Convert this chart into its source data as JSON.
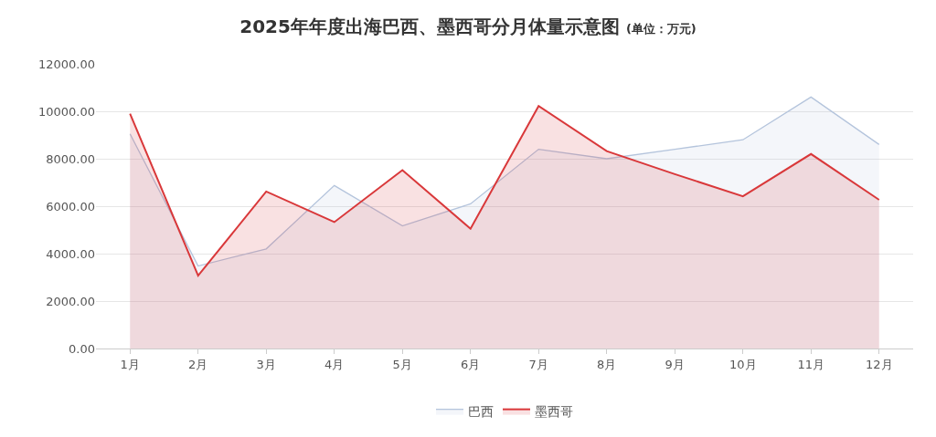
{
  "chart_data": {
    "type": "area",
    "title": "2025年年度出海巴西、墨西哥分月体量示意图",
    "subtitle": "(单位：万元)",
    "categories": [
      "1月",
      "2月",
      "3月",
      "4月",
      "5月",
      "6月",
      "7月",
      "8月",
      "9月",
      "10月",
      "11月",
      "12月"
    ],
    "series": [
      {
        "name": "巴西",
        "color": "#b4c4dc",
        "values": [
          9050,
          3480,
          4200,
          6870,
          5170,
          6100,
          8400,
          8000,
          8400,
          8800,
          10600,
          8600
        ]
      },
      {
        "name": "墨西哥",
        "color": "#d9383a",
        "values": [
          9900,
          3070,
          6620,
          5330,
          7520,
          5050,
          10220,
          8320,
          7350,
          6420,
          8200,
          6270
        ]
      }
    ],
    "ylim": [
      0,
      12000
    ],
    "yticks": [
      {
        "value": 0,
        "label": "0.00"
      },
      {
        "value": 2000,
        "label": "2000.00"
      },
      {
        "value": 4000,
        "label": "4000.00"
      },
      {
        "value": 6000,
        "label": "6000.00"
      },
      {
        "value": 8000,
        "label": "8000.00"
      },
      {
        "value": 10000,
        "label": "10000.00"
      },
      {
        "value": 12000,
        "label": "12000.00"
      }
    ],
    "grid": "y",
    "legend": "bottom"
  }
}
